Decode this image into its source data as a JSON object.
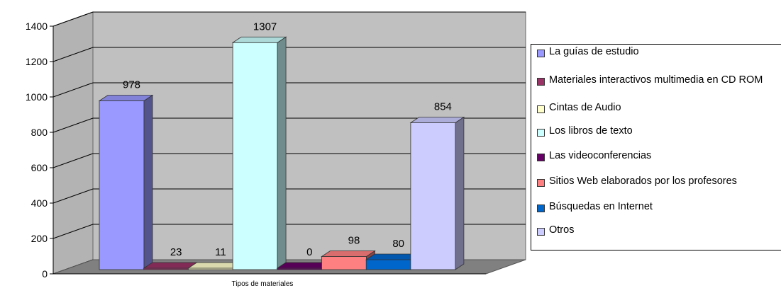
{
  "chart_data": {
    "type": "bar",
    "xlabel": "Tipos de materiales",
    "ylim": [
      0,
      1400
    ],
    "yticks": [
      0,
      200,
      400,
      600,
      800,
      1000,
      1200,
      1400
    ],
    "grid": true,
    "legend_position": "right",
    "series": [
      {
        "name": "La guías de estudio",
        "value": 978,
        "color": "#9999ff"
      },
      {
        "name": "Materiales interactivos multimedia en CD ROM",
        "value": 23,
        "color": "#993366"
      },
      {
        "name": "Cintas de Audio",
        "value": 11,
        "color": "#ffffcc"
      },
      {
        "name": "Los libros de texto",
        "value": 1307,
        "color": "#ccffff"
      },
      {
        "name": "Las videoconferencias",
        "value": 0,
        "color": "#660066"
      },
      {
        "name": "Sitios Web elaborados por los profesores",
        "value": 98,
        "color": "#ff8080"
      },
      {
        "name": "Búsquedas en Internet",
        "value": 80,
        "color": "#0066cc"
      },
      {
        "name": "Otros",
        "value": 854,
        "color": "#ccccff"
      }
    ]
  }
}
